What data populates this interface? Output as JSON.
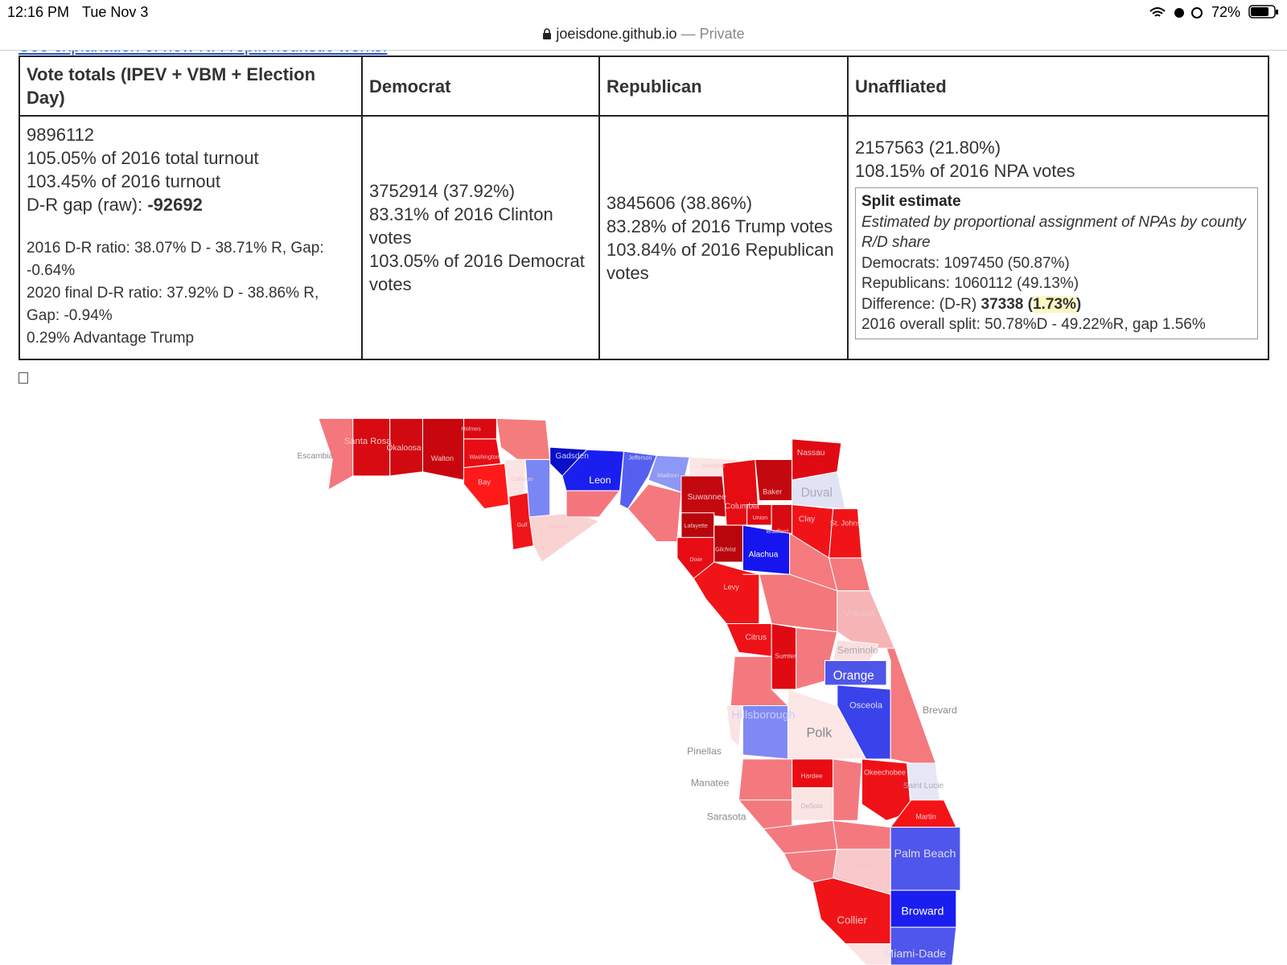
{
  "status_bar": {
    "time": "12:16 PM",
    "day": "Tue Nov 3",
    "battery": "72%"
  },
  "address_bar": {
    "domain": "joeisdone.github.io",
    "mode": "— Private"
  },
  "link": "See explanation of how NPA split heuristic works.",
  "table": {
    "headers": [
      "Vote totals (IPEV + VBM + Election Day)",
      "Democrat",
      "Republican",
      "Unaffliated"
    ],
    "totals": {
      "lines": [
        "9896112",
        "105.05% of 2016 total turnout",
        "103.45% of 2016 turnout"
      ],
      "gap_label": "D-R gap (raw): ",
      "gap_value": "-92692",
      "notes": [
        "2016 D-R ratio: 38.07% D - 38.71% R, Gap: -0.64%",
        "2020 final D-R ratio: 37.92% D - 38.86% R, Gap: -0.94%",
        "0.29% Advantage Trump"
      ]
    },
    "democrat": [
      "3752914 (37.92%)",
      "83.31% of 2016 Clinton votes",
      "103.05% of 2016 Democrat votes"
    ],
    "republican": [
      "3845606 (38.86%)",
      "83.28% of 2016 Trump votes",
      "103.84% of 2016 Republican votes"
    ],
    "unaffiliated": {
      "lines": [
        "2157563 (21.80%)",
        "108.15% of 2016 NPA votes"
      ],
      "split": {
        "title": "Split estimate",
        "note": "Estimated by proportional assignment of NPAs by county R/D share",
        "democrats": "Democrats: 1097450 (50.87%)",
        "republicans": "Republicans: 1060112 (49.13%)",
        "diff_label": "Difference: (D-R) ",
        "diff_value": "37338",
        "diff_open": "(",
        "diff_pct": "1.73%",
        "diff_close": ")",
        "overall": "2016 overall split: 50.78%D - 49.22%R, gap 1.56%"
      }
    }
  },
  "map": {
    "counties": [
      "Escambia",
      "Santa Rosa",
      "Okaloosa",
      "Walton",
      "Holmes",
      "Washington",
      "Bay",
      "Calhoun",
      "Gulf",
      "Franklin",
      "Gadsden",
      "Leon",
      "Jefferson",
      "Madison",
      "Hamilton",
      "Suwannee",
      "Columbia",
      "Baker",
      "Nassau",
      "Duval",
      "Union",
      "Bradford",
      "Clay",
      "St. Johns",
      "Lafayette",
      "Gilchrist",
      "Alachua",
      "Dixie",
      "Levy",
      "Volusia",
      "Citrus",
      "Sumter",
      "Seminole",
      "Orange",
      "Osceola",
      "Brevard",
      "Hillsborough",
      "Polk",
      "Pinellas",
      "Manatee",
      "Hardee",
      "Okeechobee",
      "Saint Lucie",
      "DeSoto",
      "Sarasota",
      "Martin",
      "Palm Beach",
      "Hendry",
      "Broward",
      "Collier",
      "Miami-Dade"
    ]
  }
}
